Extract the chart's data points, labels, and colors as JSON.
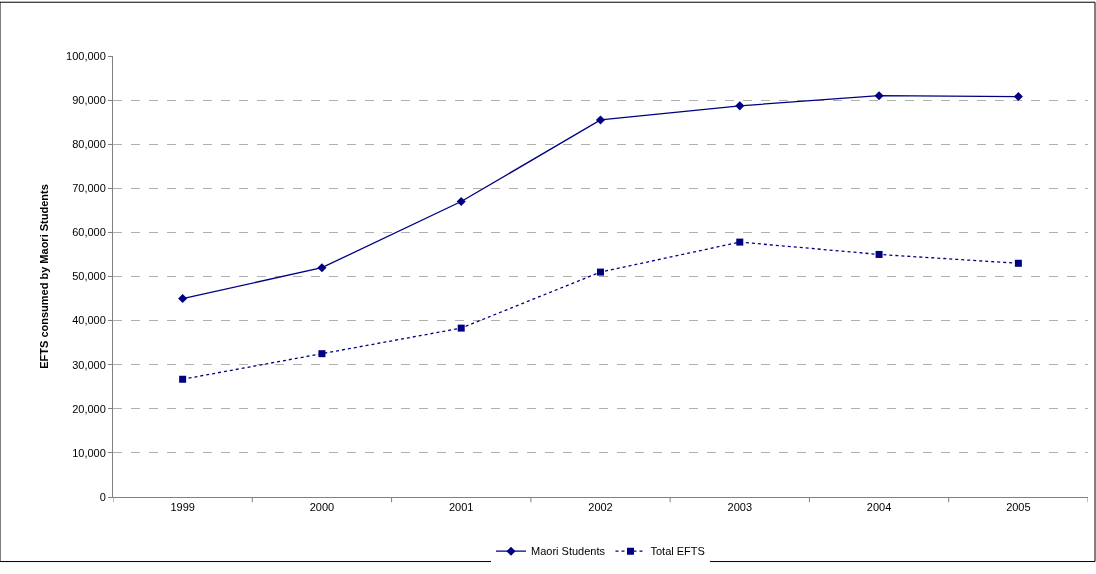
{
  "chart_data": {
    "type": "line",
    "ylabel": "EFTS consumed by Maori Students",
    "categories": [
      "1999",
      "2000",
      "2001",
      "2002",
      "2003",
      "2004",
      "2005"
    ],
    "series": [
      {
        "name": "Maori Students",
        "color": "#000080",
        "marker": "diamond",
        "line_style": "solid",
        "values": [
          45000,
          52000,
          67000,
          85500,
          88700,
          91000,
          90800
        ]
      },
      {
        "name": "Total EFTS",
        "color": "#000080",
        "marker": "square",
        "line_style": "dotted",
        "values": [
          26700,
          32500,
          38300,
          51000,
          57800,
          55000,
          53000
        ]
      }
    ],
    "ylim": [
      0,
      100000
    ],
    "yticks": [
      {
        "value": 0,
        "label": "0"
      },
      {
        "value": 10000,
        "label": "10,000"
      },
      {
        "value": 20000,
        "label": "20,000"
      },
      {
        "value": 30000,
        "label": "30,000"
      },
      {
        "value": 40000,
        "label": "40,000"
      },
      {
        "value": 50000,
        "label": "50,000"
      },
      {
        "value": 60000,
        "label": "60,000"
      },
      {
        "value": 70000,
        "label": "70,000"
      },
      {
        "value": 80000,
        "label": "80,000"
      },
      {
        "value": 90000,
        "label": "90,000"
      },
      {
        "value": 100000,
        "label": "100,000"
      }
    ],
    "grid": "y",
    "legend": "bottom"
  }
}
